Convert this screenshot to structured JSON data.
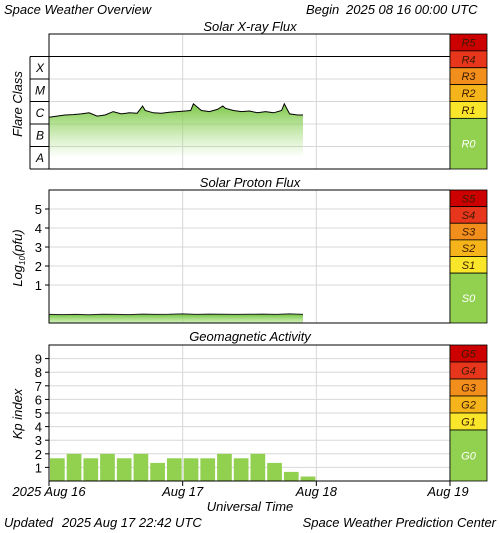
{
  "header": {
    "title": "Space Weather Overview",
    "begin_label": "Begin",
    "begin_time": "2025 08 16 00:00 UTC"
  },
  "footer": {
    "updated_label": "Updated",
    "updated_time": "2025 Aug 17 22:42 UTC",
    "center": "Space Weather Prediction Center"
  },
  "chart_data": [
    {
      "type": "area",
      "title": "Solar X-ray Flux",
      "ylabel": "Flare Class",
      "class_labels": [
        "A",
        "B",
        "C",
        "M",
        "X"
      ],
      "ylim": [
        0,
        6
      ],
      "x": [
        0,
        0.06,
        0.12,
        0.18,
        0.24,
        0.3,
        0.36,
        0.42,
        0.48,
        0.54,
        0.6,
        0.66,
        0.7,
        0.72,
        0.78,
        0.84,
        0.9,
        0.96,
        1.02,
        1.06,
        1.08,
        1.14,
        1.2,
        1.26,
        1.3,
        1.32,
        1.38,
        1.44,
        1.5,
        1.56,
        1.62,
        1.68,
        1.74,
        1.76,
        1.8,
        1.86,
        1.9
      ],
      "values": [
        2.3,
        2.35,
        2.4,
        2.42,
        2.45,
        2.5,
        2.35,
        2.4,
        2.55,
        2.45,
        2.5,
        2.48,
        2.8,
        2.6,
        2.5,
        2.48,
        2.52,
        2.55,
        2.58,
        2.6,
        2.9,
        2.6,
        2.55,
        2.65,
        2.8,
        2.7,
        2.6,
        2.55,
        2.58,
        2.5,
        2.55,
        2.5,
        2.6,
        2.9,
        2.45,
        2.4,
        2.4
      ],
      "scale": [
        {
          "label": "R5",
          "color": "#cc0000"
        },
        {
          "label": "R4",
          "color": "#e8361c"
        },
        {
          "label": "R3",
          "color": "#f28e1c"
        },
        {
          "label": "R2",
          "color": "#f5b51a"
        },
        {
          "label": "R1",
          "color": "#f9e62a"
        },
        {
          "label": "R0",
          "color": "#92d050"
        }
      ]
    },
    {
      "type": "area",
      "title": "Solar Proton Flux",
      "ylabel": "Log10(pfu)",
      "ylim": [
        -1,
        6
      ],
      "yticks": [
        1,
        2,
        3,
        4,
        5
      ],
      "x": [
        0,
        0.1,
        0.2,
        0.3,
        0.4,
        0.5,
        0.6,
        0.7,
        0.8,
        0.9,
        1.0,
        1.1,
        1.2,
        1.3,
        1.4,
        1.5,
        1.6,
        1.7,
        1.8,
        1.9
      ],
      "values": [
        -0.55,
        -0.56,
        -0.55,
        -0.57,
        -0.54,
        -0.55,
        -0.56,
        -0.53,
        -0.55,
        -0.54,
        -0.52,
        -0.55,
        -0.53,
        -0.54,
        -0.55,
        -0.54,
        -0.53,
        -0.55,
        -0.52,
        -0.55
      ],
      "scale": [
        {
          "label": "S5",
          "color": "#cc0000"
        },
        {
          "label": "S4",
          "color": "#e8361c"
        },
        {
          "label": "S3",
          "color": "#f28e1c"
        },
        {
          "label": "S2",
          "color": "#f5b51a"
        },
        {
          "label": "S1",
          "color": "#f9e62a"
        },
        {
          "label": "S0",
          "color": "#92d050"
        }
      ]
    },
    {
      "type": "bar",
      "title": "Geomagnetic Activity",
      "ylabel": "Kp index",
      "ylim": [
        0,
        10
      ],
      "yticks": [
        1,
        2,
        3,
        4,
        5,
        6,
        7,
        8,
        9
      ],
      "x": [
        0.0625,
        0.1875,
        0.3125,
        0.4375,
        0.5625,
        0.6875,
        0.8125,
        0.9375,
        1.0625,
        1.1875,
        1.3125,
        1.4375,
        1.5625,
        1.6875,
        1.8125,
        1.9375
      ],
      "values": [
        1.67,
        2.0,
        1.67,
        2.0,
        1.67,
        2.0,
        1.33,
        1.67,
        1.67,
        1.67,
        2.0,
        1.67,
        2.0,
        1.33,
        0.67,
        0.33
      ],
      "scale": [
        {
          "label": "G5",
          "color": "#cc0000"
        },
        {
          "label": "G4",
          "color": "#e8361c"
        },
        {
          "label": "G3",
          "color": "#f28e1c"
        },
        {
          "label": "G2",
          "color": "#f5b51a"
        },
        {
          "label": "G1",
          "color": "#f9e62a"
        },
        {
          "label": "G0",
          "color": "#92d050"
        }
      ]
    }
  ],
  "x_axis": {
    "label": "Universal Time",
    "xlim": [
      0,
      3
    ],
    "ticks": [
      {
        "x": 0,
        "label": "2025 Aug 16"
      },
      {
        "x": 1,
        "label": "Aug 17"
      },
      {
        "x": 2,
        "label": "Aug 18"
      },
      {
        "x": 3,
        "label": "Aug 19"
      }
    ]
  }
}
